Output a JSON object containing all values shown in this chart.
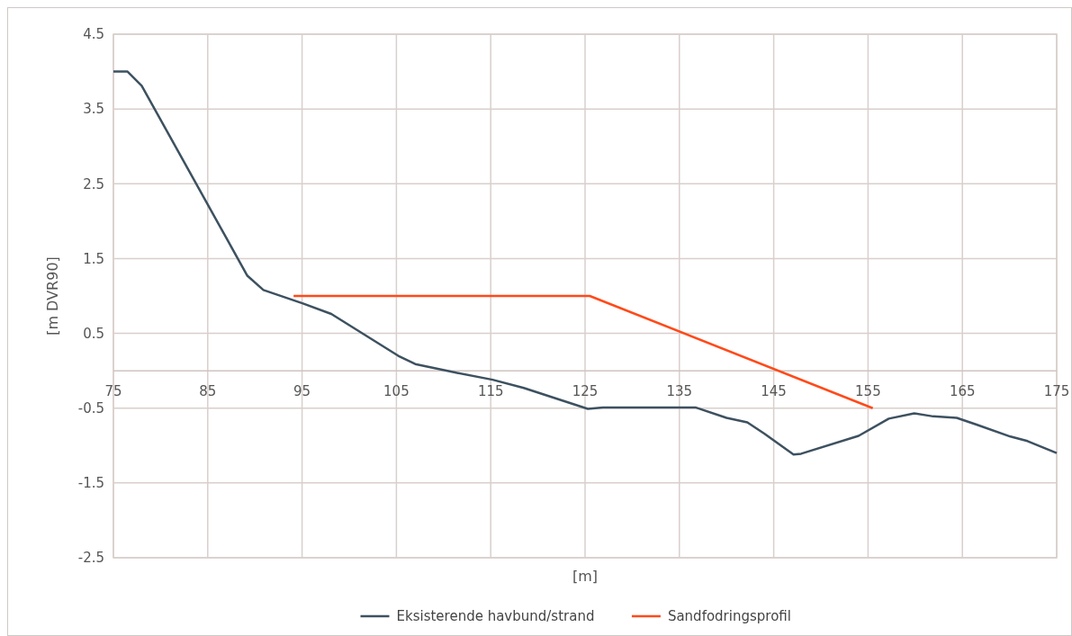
{
  "chart_data": {
    "type": "line",
    "xlabel": "[m]",
    "ylabel": "[m DVR90]",
    "xlim": [
      75,
      175
    ],
    "xticks": [
      75,
      85,
      95,
      105,
      115,
      125,
      135,
      145,
      155,
      165,
      175
    ],
    "ylim": [
      -2.5,
      4.5
    ],
    "yticks": [
      -2.5,
      -1.5,
      -0.5,
      0.5,
      1.5,
      2.5,
      3.5,
      4.5
    ],
    "grid": true,
    "legend": "bottom",
    "series": [
      {
        "name": "Eksisterende havbund/strand",
        "color": "#3d5160",
        "x": [
          75,
          76.5,
          78,
          89.2,
          90.9,
          95.1,
          98.1,
          105.2,
          107,
          111.1,
          115.2,
          118.5,
          125.3,
          126.9,
          136.7,
          140,
          142.2,
          144,
          147.1,
          147.9,
          154,
          157.2,
          159.9,
          161.9,
          164.4,
          166.5,
          170.1,
          171.9,
          175
        ],
        "values": [
          4.0,
          4.0,
          3.81,
          1.27,
          1.08,
          0.9,
          0.76,
          0.2,
          0.09,
          -0.02,
          -0.12,
          -0.23,
          -0.51,
          -0.49,
          -0.49,
          -0.63,
          -0.69,
          -0.84,
          -1.12,
          -1.11,
          -0.87,
          -0.64,
          -0.57,
          -0.61,
          -0.63,
          -0.72,
          -0.88,
          -0.94,
          -1.1
        ]
      },
      {
        "name": "Sandfodringsprofil",
        "color": "#ff4a1a",
        "x": [
          94.1,
          125.5,
          155.5
        ],
        "values": [
          1.0,
          1.0,
          -0.5
        ]
      }
    ]
  }
}
